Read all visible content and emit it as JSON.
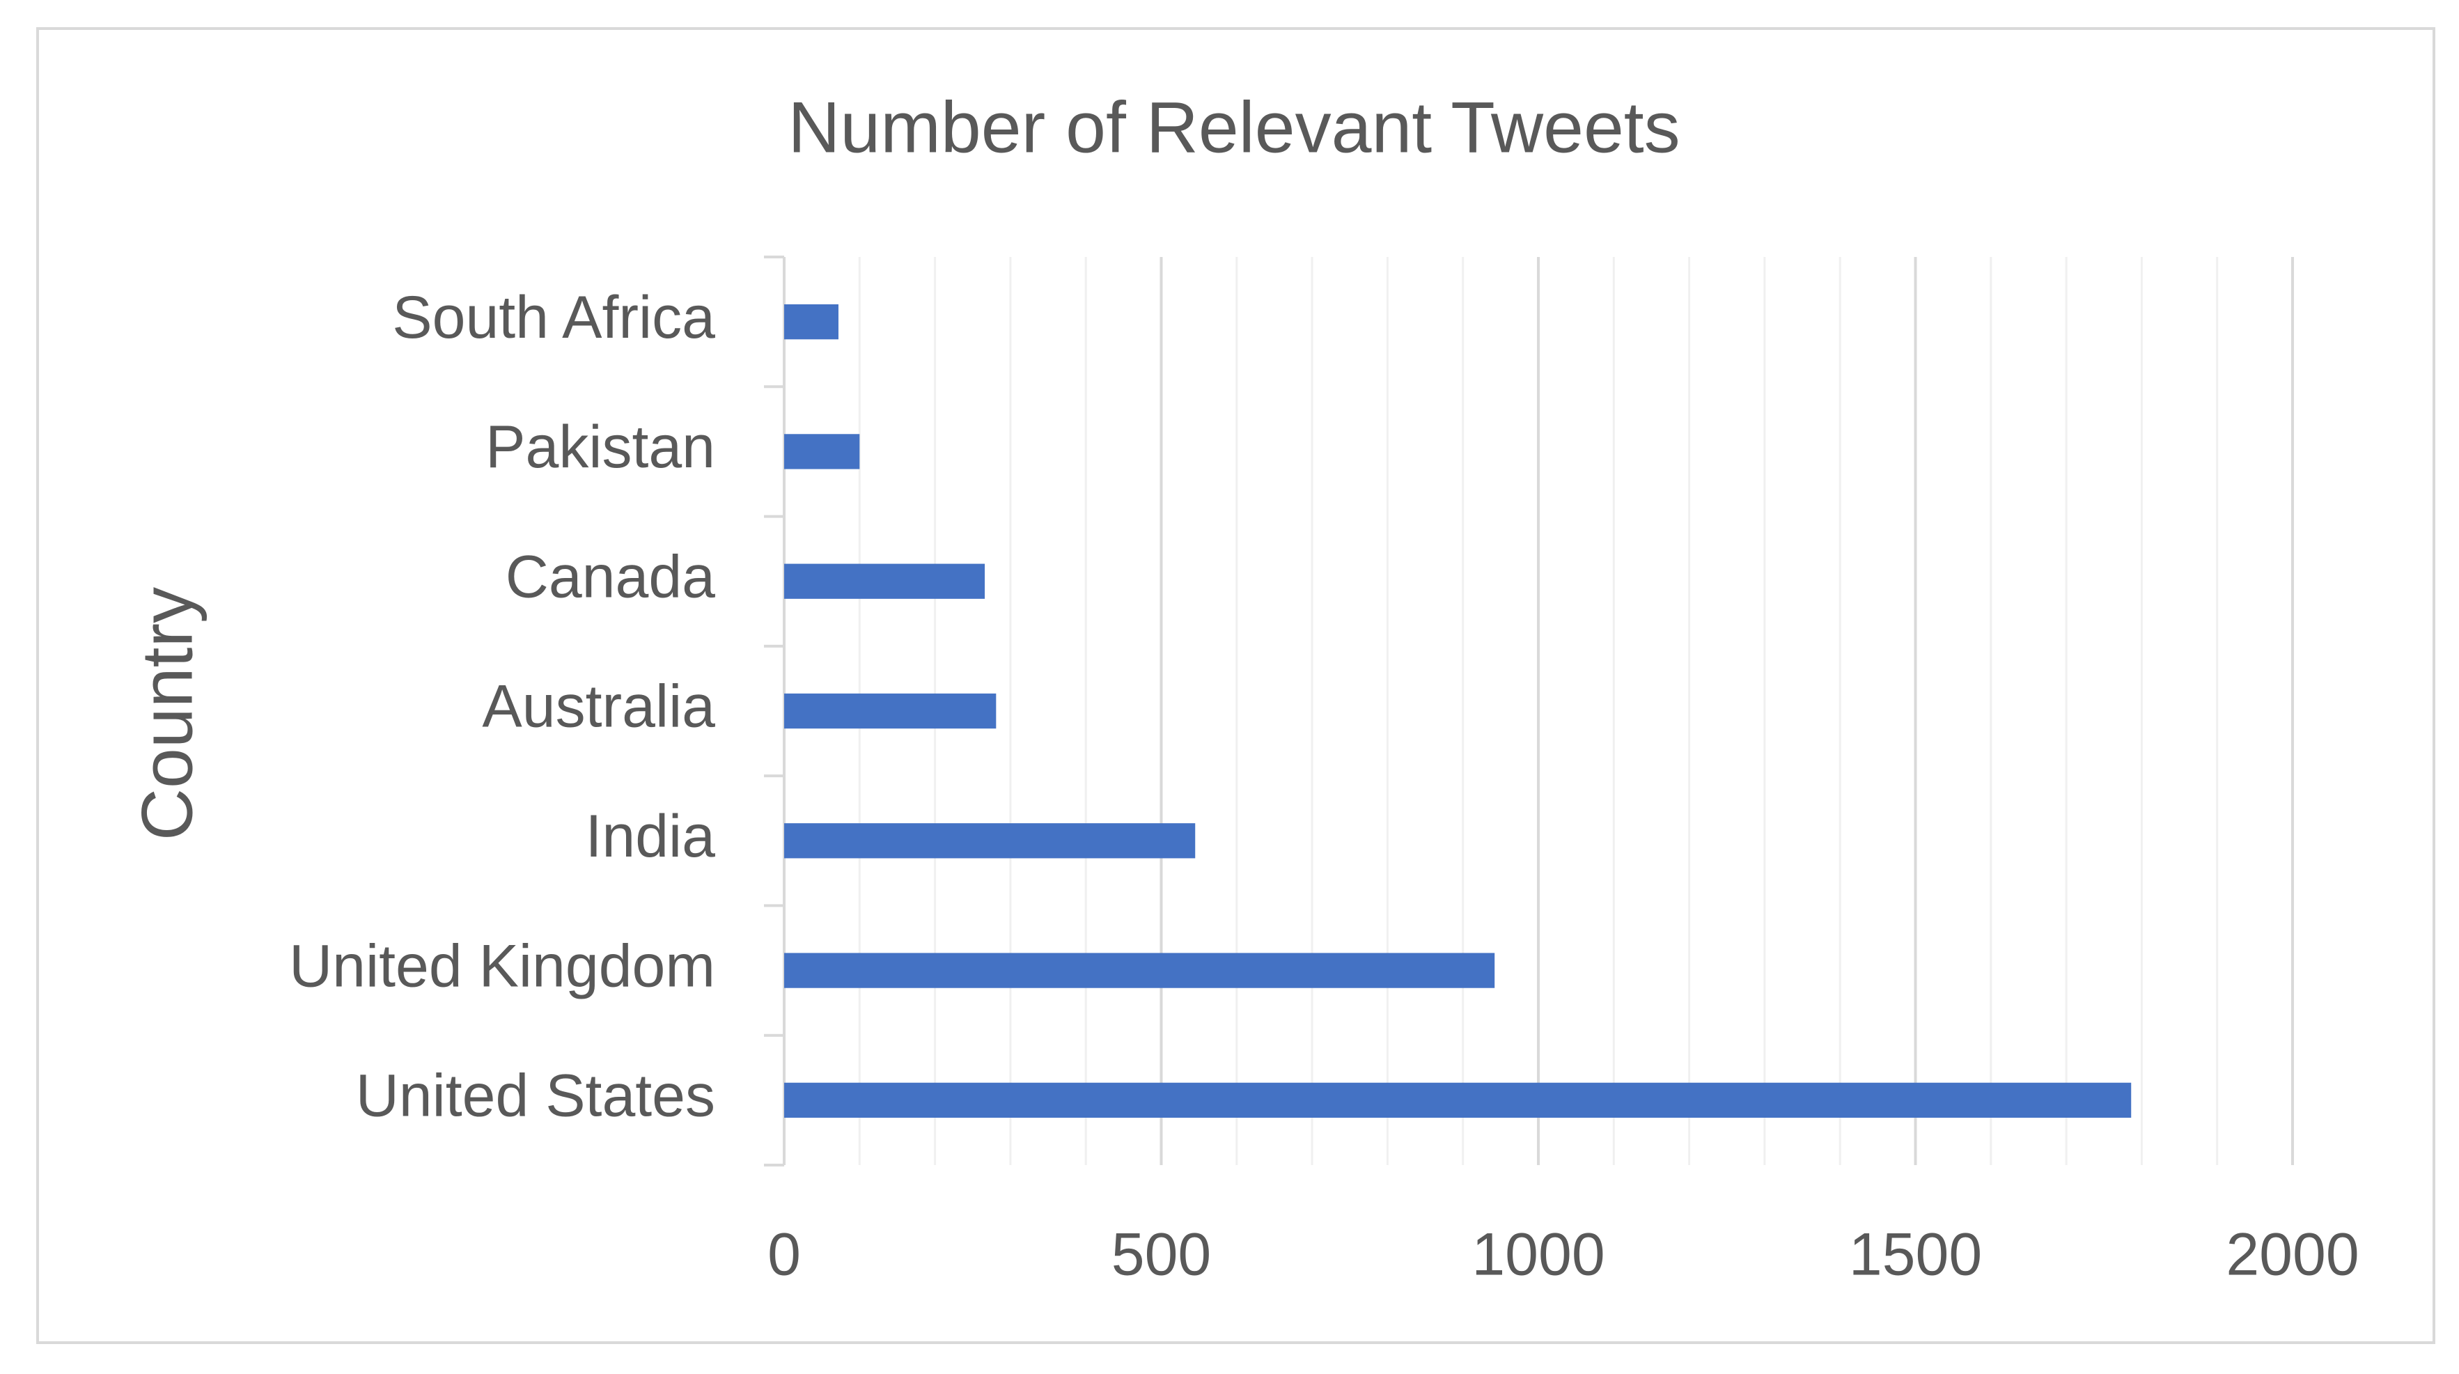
{
  "chart_data": {
    "type": "bar",
    "orientation": "horizontal",
    "title": "Number of Relevant Tweets",
    "y_label": "Country",
    "categories": [
      "United States",
      "United Kingdom",
      "India",
      "Australia",
      "Canada",
      "Pakistan",
      "South Africa"
    ],
    "values": [
      1786,
      942,
      545,
      281,
      266,
      100,
      72
    ],
    "color": "#4472c4",
    "xlim": [
      0,
      2000
    ],
    "xticks": [
      0,
      500,
      1000,
      1500,
      2000
    ],
    "grid": true
  }
}
